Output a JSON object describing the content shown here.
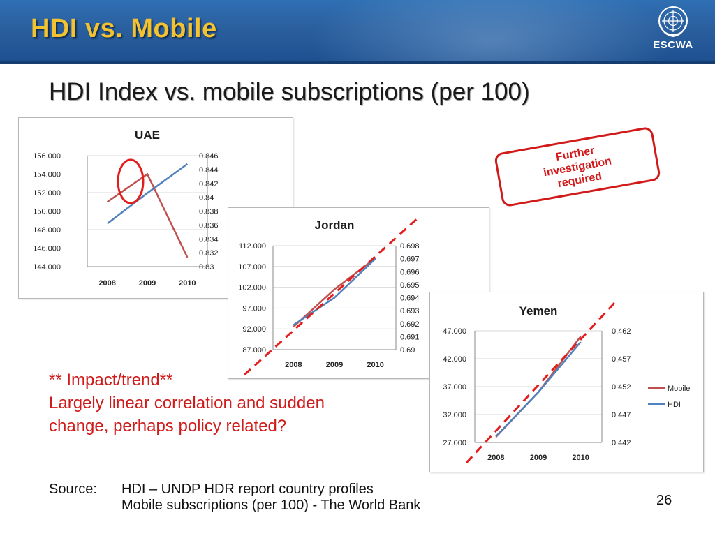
{
  "slide": {
    "title": "HDI vs. Mobile",
    "subtitle": "HDI Index vs. mobile subscriptions (per 100)",
    "logo_text": "ESCWA",
    "callout": "Further investigation required",
    "impact_lines": [
      "** Impact/trend**",
      "Largely linear correlation and sudden",
      "change, perhaps policy related?"
    ],
    "source_label": "Source:",
    "source_lines": [
      "HDI – UNDP HDR report country profiles",
      "Mobile subscriptions (per 100) - The World Bank"
    ],
    "page_number": "26",
    "colors": {
      "title": "#f2c230",
      "header_bg": "#2a5f9e",
      "mobile": "#c0504d",
      "hdi": "#4f81bd",
      "highlight": "#e31c1c"
    },
    "icons": [
      "un-emblem-icon"
    ]
  },
  "chart_data": [
    {
      "type": "line",
      "title": "UAE",
      "categories": [
        "2008",
        "2009",
        "2010"
      ],
      "series": [
        {
          "name": "Mobile",
          "axis": "left",
          "values": [
            151.0,
            154.0,
            145.0
          ]
        },
        {
          "name": "HDI",
          "axis": "right",
          "values": [
            0.8362,
            0.8406,
            0.8448
          ]
        }
      ],
      "y_left": {
        "ylim": [
          144,
          156
        ],
        "ticks": [
          "144.000",
          "146.000",
          "148.000",
          "150.000",
          "152.000",
          "154.000",
          "156.000"
        ]
      },
      "y_right": {
        "ylim": [
          0.83,
          0.846
        ],
        "ticks": [
          "0.83",
          "0.832",
          "0.834",
          "0.836",
          "0.838",
          "0.84",
          "0.842",
          "0.844",
          "0.846"
        ]
      },
      "grid": true,
      "legend": "none",
      "annotation": "red circle around the 2009 crossing point"
    },
    {
      "type": "line",
      "title": "Jordan",
      "categories": [
        "2008",
        "2009",
        "2010"
      ],
      "series": [
        {
          "name": "Mobile",
          "axis": "left",
          "values": [
            92.5,
            101.5,
            109.0
          ]
        },
        {
          "name": "HDI",
          "axis": "right",
          "values": [
            0.6919,
            0.694,
            0.697
          ]
        }
      ],
      "y_left": {
        "ylim": [
          87,
          112
        ],
        "ticks": [
          "87.000",
          "92.000",
          "97.000",
          "102.000",
          "107.000",
          "112.000"
        ]
      },
      "y_right": {
        "ylim": [
          0.69,
          0.698
        ],
        "ticks": [
          "0.69",
          "0.691",
          "0.692",
          "0.693",
          "0.694",
          "0.695",
          "0.696",
          "0.697",
          "0.698"
        ]
      },
      "grid": true,
      "legend": "none",
      "annotation": "red dashed trend line"
    },
    {
      "type": "line",
      "title": "Yemen",
      "categories": [
        "2008",
        "2009",
        "2010"
      ],
      "series": [
        {
          "name": "Mobile",
          "axis": "left",
          "values": [
            28.0,
            36.0,
            46.0
          ]
        },
        {
          "name": "HDI",
          "axis": "right",
          "values": [
            0.4431,
            0.451,
            0.46
          ]
        }
      ],
      "y_left": {
        "ylim": [
          27,
          47
        ],
        "ticks": [
          "27.000",
          "32.000",
          "37.000",
          "42.000",
          "47.000"
        ]
      },
      "y_right": {
        "ylim": [
          0.442,
          0.462
        ],
        "ticks": [
          "0.442",
          "0.447",
          "0.452",
          "0.457",
          "0.462"
        ]
      },
      "grid": true,
      "legend": "right",
      "annotation": "red dashed trend line"
    }
  ]
}
